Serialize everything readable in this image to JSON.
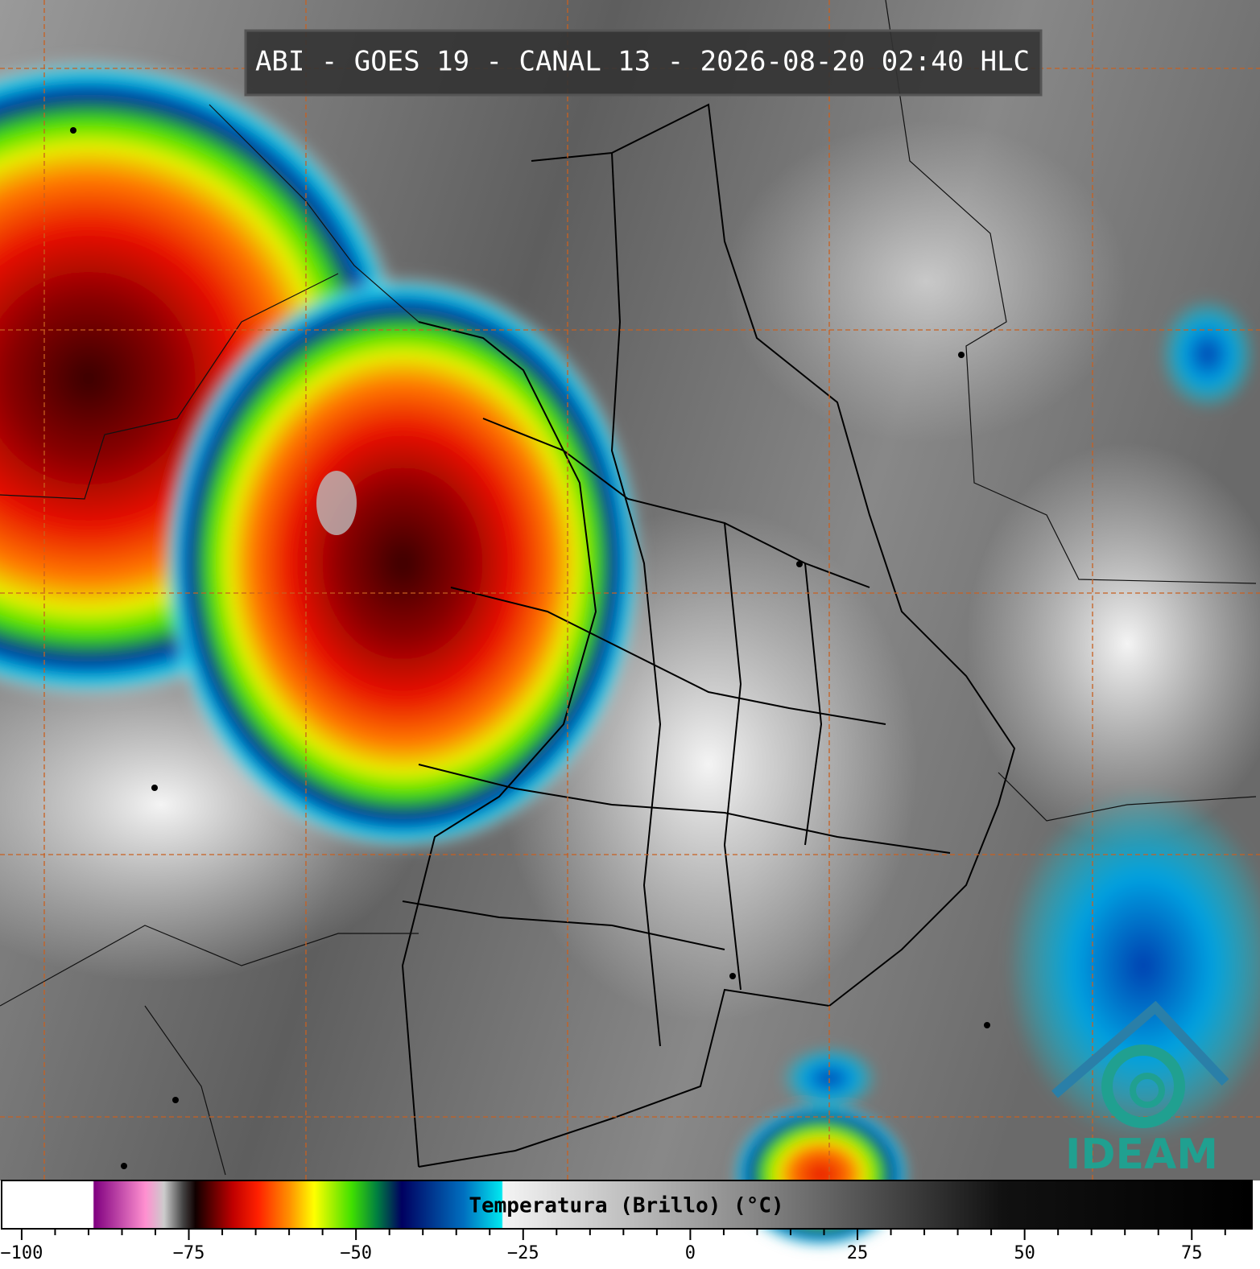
{
  "header": {
    "title": "ABI - GOES 19 - CANAL 13 - 2026-08-20 02:40 HLC"
  },
  "colorbar": {
    "label": "Temperatura (Brillo) (°C)",
    "xlim": [
      -103,
      84
    ],
    "xticks": [
      {
        "value": -100,
        "label": "−100"
      },
      {
        "value": -75,
        "label": "−75"
      },
      {
        "value": -50,
        "label": "−50"
      },
      {
        "value": -25,
        "label": "−25"
      },
      0,
      25,
      50,
      75
    ],
    "minor_xticks": [
      -95,
      -90,
      -85,
      -80,
      -70,
      -65,
      -60,
      -55,
      -45,
      -40,
      -35,
      -30,
      -20,
      -15,
      -10,
      -5,
      5,
      10,
      15,
      20,
      30,
      35,
      40,
      45,
      55,
      60,
      65,
      70,
      80
    ]
  },
  "logo": {
    "text": "IDEAM"
  }
}
